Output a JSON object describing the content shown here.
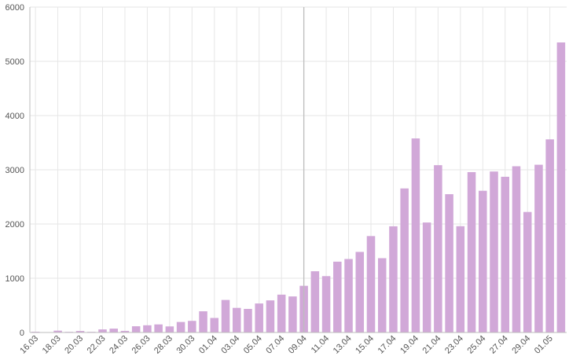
{
  "chart_data": {
    "type": "bar",
    "title": "",
    "xlabel": "",
    "ylabel": "",
    "ylim": [
      0,
      6000
    ],
    "yticks": [
      0,
      1000,
      2000,
      3000,
      4000,
      5000,
      6000
    ],
    "grid": true,
    "bar_color": "#d1a8d8",
    "reference_line_category": "09.04",
    "categories": [
      "16.03",
      "17.03",
      "18.03",
      "19.03",
      "20.03",
      "21.03",
      "22.03",
      "23.03",
      "24.03",
      "25.03",
      "26.03",
      "27.03",
      "28.03",
      "29.03",
      "30.03",
      "31.03",
      "01.04",
      "02.04",
      "03.04",
      "04.04",
      "05.04",
      "06.04",
      "07.04",
      "08.04",
      "09.04",
      "10.04",
      "11.04",
      "12.04",
      "13.04",
      "14.04",
      "15.04",
      "16.04",
      "17.04",
      "18.04",
      "19.04",
      "20.04",
      "21.04",
      "22.04",
      "23.04",
      "24.04",
      "25.04",
      "26.04",
      "27.04",
      "28.04",
      "29.04",
      "30.04",
      "01.05",
      "02.05"
    ],
    "labeled_categories": [
      "16.03",
      "18.03",
      "20.03",
      "22.03",
      "24.03",
      "26.03",
      "28.03",
      "30.03",
      "01.04",
      "03.04",
      "05.04",
      "07.04",
      "09.04",
      "11.04",
      "13.04",
      "15.04",
      "17.04",
      "19.04",
      "21.04",
      "23.04",
      "25.04",
      "27.04",
      "29.04",
      "01.05"
    ],
    "values": [
      14,
      6,
      34,
      12,
      28,
      12,
      57,
      71,
      30,
      115,
      133,
      149,
      112,
      194,
      214,
      391,
      268,
      600,
      454,
      435,
      535,
      592,
      698,
      665,
      861,
      1129,
      1039,
      1306,
      1355,
      1486,
      1778,
      1370,
      1958,
      2656,
      3578,
      2028,
      3085,
      2550,
      1960,
      2957,
      2613,
      2968,
      2871,
      3065,
      2222,
      3093,
      3561,
      5348
    ]
  }
}
